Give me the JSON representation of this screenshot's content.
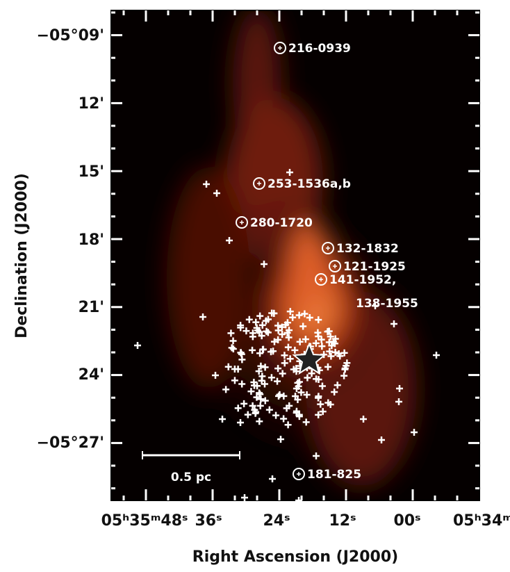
{
  "axes": {
    "x_title": "Right Ascension (J2000)",
    "y_title": "Declination (J2000)",
    "x_tick_labels": [
      "05ʰ35ᵐ48ˢ",
      "36ˢ",
      "24ˢ",
      "12ˢ",
      "00ˢ",
      "05ʰ34ᵐ"
    ],
    "y_tick_labels": [
      "−05°09'",
      "12'",
      "15'",
      "18'",
      "21'",
      "24'",
      "−05°27'"
    ]
  },
  "sources": [
    {
      "label": "216-0939"
    },
    {
      "label": "253-1536a,b"
    },
    {
      "label": "280-1720"
    },
    {
      "label": "132-1832"
    },
    {
      "label": "121-1925"
    },
    {
      "label": "141-1952,",
      "label2": "138-1955"
    },
    {
      "label": "181-825"
    }
  ],
  "scale_bar": {
    "label": "0.5 pc"
  }
}
